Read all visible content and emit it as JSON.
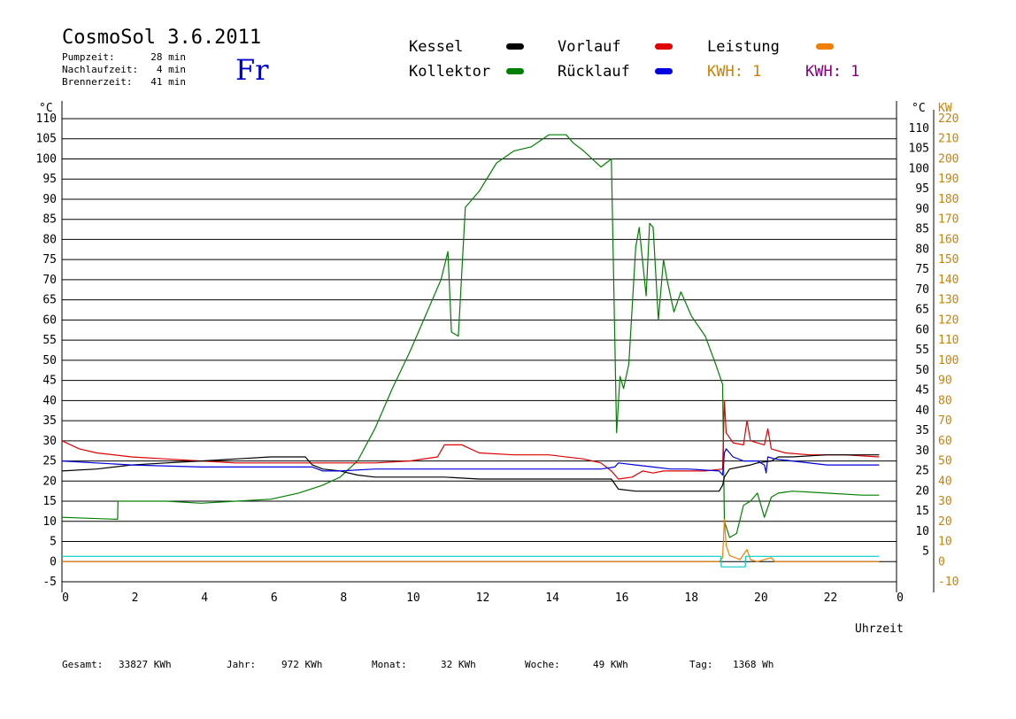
{
  "header": {
    "title": "CosmoSol 3.6.2011",
    "day": "Fr",
    "info": [
      {
        "label": "Pumpzeit:",
        "value": "28 min"
      },
      {
        "label": "Nachlaufzeit:",
        "value": "4 min"
      },
      {
        "label": "Brennerzeit:",
        "value": "41 min"
      }
    ]
  },
  "legend": [
    {
      "label": "Kessel",
      "color": "#000000",
      "text_color": "#000000"
    },
    {
      "label": "Vorlauf",
      "color": "#e00000",
      "text_color": "#000000"
    },
    {
      "label": "Leistung",
      "color": "#f08000",
      "text_color": "#000000"
    },
    {
      "label": "Kollektor",
      "color": "#008000",
      "text_color": "#000000"
    },
    {
      "label": "Rücklauf",
      "color": "#0000e0",
      "text_color": "#000000"
    },
    {
      "label": "KWH: 1",
      "color": "",
      "text_color": "#d08000"
    },
    {
      "label": "KWH: 1",
      "color": "",
      "text_color": "#800080"
    }
  ],
  "footer": [
    {
      "label": "Gesamt:",
      "value": "33827 KWh"
    },
    {
      "label": "Jahr:",
      "value": "972 KWh"
    },
    {
      "label": "Monat:",
      "value": "32 KWh"
    },
    {
      "label": "Woche:",
      "value": "49 KWh"
    },
    {
      "label": "Tag:",
      "value": "1368 Wh"
    }
  ],
  "chart_data": {
    "type": "line",
    "xlabel": "Uhrzeit",
    "ylabel_left": "°C",
    "ylabel_right_1": "°C",
    "ylabel_right_2": "KW",
    "xlim": [
      0,
      24
    ],
    "ylim": [
      -5,
      110
    ],
    "y2lim": [
      -10,
      220
    ],
    "grid": true,
    "x_ticks": [
      "0",
      "2",
      "4",
      "6",
      "8",
      "10",
      "12",
      "14",
      "16",
      "18",
      "20",
      "22",
      "0"
    ],
    "y_ticks": [
      "-5",
      "0",
      "5",
      "10",
      "15",
      "20",
      "25",
      "30",
      "35",
      "40",
      "45",
      "50",
      "55",
      "60",
      "65",
      "70",
      "75",
      "80",
      "85",
      "90",
      "95",
      "100",
      "105",
      "110"
    ],
    "y_ticks_right": [
      "",
      "",
      "5",
      "10",
      "15",
      "20",
      "25",
      "30",
      "35",
      "40",
      "45",
      "50",
      "55",
      "60",
      "65",
      "70",
      "75",
      "80",
      "85",
      "90",
      "95",
      "100",
      "105",
      "110"
    ],
    "y2_ticks": [
      "-10",
      "0",
      "10",
      "20",
      "30",
      "40",
      "50",
      "60",
      "70",
      "80",
      "90",
      "100",
      "110",
      "120",
      "130",
      "140",
      "150",
      "160",
      "170",
      "180",
      "190",
      "200",
      "210",
      "220"
    ],
    "series": [
      {
        "name": "Kollektor",
        "color": "#008000",
        "x": [
          0,
          1.6,
          1.61,
          3,
          4,
          5,
          6,
          6.8,
          7.5,
          8,
          8.5,
          9,
          9.5,
          10,
          10.5,
          10.9,
          11.1,
          11.2,
          11.4,
          11.6,
          12,
          12.5,
          13,
          13.5,
          14,
          14.5,
          14.7,
          15,
          15.5,
          15.8,
          15.95,
          16.05,
          16.15,
          16.3,
          16.5,
          16.6,
          16.8,
          16.9,
          17,
          17.15,
          17.3,
          17.4,
          17.6,
          17.8,
          18.1,
          18.5,
          18.8,
          19,
          19.05,
          19.2,
          19.4,
          19.6,
          19.8,
          20,
          20.1,
          20.2,
          20.4,
          20.6,
          21,
          22,
          23,
          23.5
        ],
        "y": [
          11,
          10.5,
          15,
          15,
          14.5,
          15,
          15.5,
          17,
          19,
          21,
          25,
          33,
          43,
          52,
          62,
          70,
          77,
          57,
          56,
          88,
          92,
          99,
          102,
          103,
          106,
          106,
          104,
          102,
          98,
          100,
          32,
          46,
          43,
          49,
          78,
          83,
          66,
          84,
          83,
          60,
          75,
          70,
          62,
          67,
          61,
          56,
          49,
          44,
          10,
          6,
          7,
          14,
          15,
          17,
          14,
          11,
          16,
          17,
          17.5,
          17,
          16.5,
          16.5
        ]
      },
      {
        "name": "Vorlauf",
        "color": "#e00000",
        "x": [
          0,
          0.5,
          1,
          2,
          3,
          4,
          5,
          6,
          7,
          8,
          9,
          10,
          10.8,
          11,
          11.5,
          12,
          13,
          14,
          15,
          15.5,
          15.8,
          16,
          16.4,
          16.7,
          17,
          17.3,
          18,
          18.5,
          19,
          19.05,
          19.1,
          19.3,
          19.6,
          19.7,
          19.8,
          20.2,
          20.3,
          20.4,
          20.8,
          21.5,
          22.5,
          23.5
        ],
        "y": [
          30,
          28,
          27,
          26,
          25.5,
          25,
          24.5,
          24.5,
          24.5,
          24.5,
          24.5,
          25,
          26,
          29,
          29,
          27,
          26.5,
          26.5,
          25.5,
          24.5,
          22.5,
          20.5,
          21,
          22.5,
          22,
          22.5,
          22.5,
          22.5,
          23,
          40,
          32,
          29.5,
          29,
          35,
          30,
          29,
          33,
          28,
          27,
          26.5,
          26.5,
          26
        ]
      },
      {
        "name": "Kessel",
        "color": "#000000",
        "x": [
          0,
          1,
          2,
          3,
          4,
          5,
          6,
          6.5,
          7,
          7.2,
          7.5,
          8,
          8.5,
          9,
          10,
          11,
          12,
          13,
          14,
          15,
          15.8,
          16,
          16.5,
          17,
          18,
          18.9,
          19,
          19.05,
          19.2,
          19.5,
          19.8,
          20,
          20.4,
          20.6,
          21,
          22,
          23,
          23.5
        ],
        "y": [
          22.5,
          23,
          24,
          24.5,
          25,
          25.5,
          26,
          26,
          26,
          24,
          23,
          22.5,
          21.5,
          21,
          21,
          21,
          20.5,
          20.5,
          20.5,
          20.5,
          20.5,
          18,
          17.5,
          17.5,
          17.5,
          17.5,
          19,
          21,
          23,
          23.5,
          24,
          24.5,
          25,
          26,
          26,
          26.5,
          26.5,
          26.5
        ]
      },
      {
        "name": "Rücklauf",
        "color": "#0000e0",
        "x": [
          0,
          2,
          4,
          6,
          7.2,
          7.5,
          8,
          9,
          10,
          12,
          14,
          15.5,
          15.9,
          16,
          16.5,
          17,
          17.5,
          18,
          18.9,
          19,
          19.05,
          19.1,
          19.3,
          19.6,
          20,
          20.2,
          20.25,
          20.3,
          20.5,
          21,
          22,
          23,
          23.5
        ],
        "y": [
          25,
          24,
          23.5,
          23.5,
          23.5,
          22.5,
          22.5,
          23,
          23,
          23,
          23,
          23,
          23.5,
          24.5,
          24,
          23.5,
          23,
          23,
          22.5,
          21.5,
          27,
          28,
          26,
          25,
          25,
          24,
          22,
          26,
          25.5,
          25,
          24,
          24,
          24
        ]
      },
      {
        "name": "Leistung",
        "color": "#f08000",
        "x": [
          0,
          18.9,
          19,
          19.05,
          19.1,
          19.2,
          19.5,
          19.7,
          19.8,
          20,
          20.4,
          20.5,
          20.6,
          21,
          22,
          23,
          23.5
        ],
        "y2": [
          0,
          0,
          2,
          21,
          8,
          3,
          1,
          6,
          1,
          0,
          2,
          0,
          0,
          0,
          0,
          0,
          0
        ]
      },
      {
        "name": "",
        "color": "#00cccc",
        "x": [
          0,
          18.95,
          18.96,
          19.65,
          19.66,
          23.5
        ],
        "y": [
          1.3,
          1.3,
          -1.3,
          -1.3,
          1.3,
          1.3
        ]
      }
    ]
  }
}
